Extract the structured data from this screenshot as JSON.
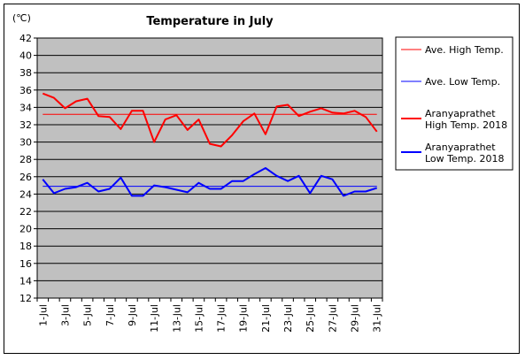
{
  "chart_data": {
    "type": "line",
    "title": "Temperature in July",
    "unit_label": "(℃)",
    "xlabel": "",
    "ylabel": "",
    "ylim": [
      12,
      42
    ],
    "y_ticks": [
      12,
      14,
      16,
      18,
      20,
      22,
      24,
      26,
      28,
      30,
      32,
      34,
      36,
      38,
      40,
      42
    ],
    "x": [
      1,
      2,
      3,
      4,
      5,
      6,
      7,
      8,
      9,
      10,
      11,
      12,
      13,
      14,
      15,
      16,
      17,
      18,
      19,
      20,
      21,
      22,
      23,
      24,
      25,
      26,
      27,
      28,
      29,
      30,
      31
    ],
    "x_tick_labels": [
      "1-Jul",
      "3-Jul",
      "5-Jul",
      "7-Jul",
      "9-Jul",
      "11-Jul",
      "13-Jul",
      "15-Jul",
      "17-Jul",
      "19-Jul",
      "21-Jul",
      "23-Jul",
      "25-Jul",
      "27-Jul",
      "29-Jul",
      "31-Jul"
    ],
    "grid": true,
    "legend_position": "right",
    "plot_background": "#c0c0c0",
    "series": [
      {
        "name": "Ave. High Temp.",
        "color": "#ff0000",
        "width": 1,
        "values": [
          33.2,
          33.2,
          33.2,
          33.2,
          33.2,
          33.2,
          33.2,
          33.2,
          33.2,
          33.2,
          33.2,
          33.2,
          33.2,
          33.2,
          33.2,
          33.2,
          33.2,
          33.2,
          33.2,
          33.2,
          33.2,
          33.2,
          33.2,
          33.2,
          33.2,
          33.2,
          33.2,
          33.2,
          33.2,
          33.2,
          33.2
        ]
      },
      {
        "name": "Ave. Low Temp.",
        "color": "#0000ff",
        "width": 1,
        "values": [
          24.9,
          24.9,
          24.9,
          24.9,
          24.9,
          24.9,
          24.9,
          24.9,
          24.9,
          24.9,
          24.9,
          24.9,
          24.9,
          24.9,
          24.9,
          24.9,
          24.9,
          24.9,
          24.9,
          24.9,
          24.9,
          24.9,
          24.9,
          24.9,
          24.9,
          24.9,
          24.9,
          24.9,
          24.9,
          24.9,
          24.9
        ]
      },
      {
        "name": "Aranyaprathet High Temp. 2018",
        "legend_lines": [
          "Aranyaprathet",
          "High Temp. 2018"
        ],
        "color": "#ff0000",
        "width": 2,
        "values": [
          35.6,
          35.1,
          33.9,
          34.7,
          35.0,
          33.0,
          32.9,
          31.5,
          33.6,
          33.6,
          30.0,
          32.6,
          33.1,
          31.4,
          32.6,
          29.8,
          29.5,
          30.8,
          32.4,
          33.3,
          30.9,
          34.1,
          34.3,
          33.0,
          33.5,
          33.9,
          33.4,
          33.3,
          33.6,
          32.9,
          31.2
        ]
      },
      {
        "name": "Aranyaprathet Low Temp. 2018",
        "legend_lines": [
          "Aranyaprathet",
          "Low Temp. 2018"
        ],
        "color": "#0000ff",
        "width": 2,
        "values": [
          25.7,
          24.1,
          24.6,
          24.8,
          25.3,
          24.3,
          24.6,
          25.9,
          23.8,
          23.8,
          25.0,
          24.8,
          24.5,
          24.2,
          25.3,
          24.6,
          24.6,
          25.5,
          25.5,
          26.3,
          27.0,
          26.1,
          25.5,
          26.1,
          24.1,
          26.1,
          25.7,
          23.8,
          24.3,
          24.3,
          24.7
        ]
      }
    ]
  }
}
